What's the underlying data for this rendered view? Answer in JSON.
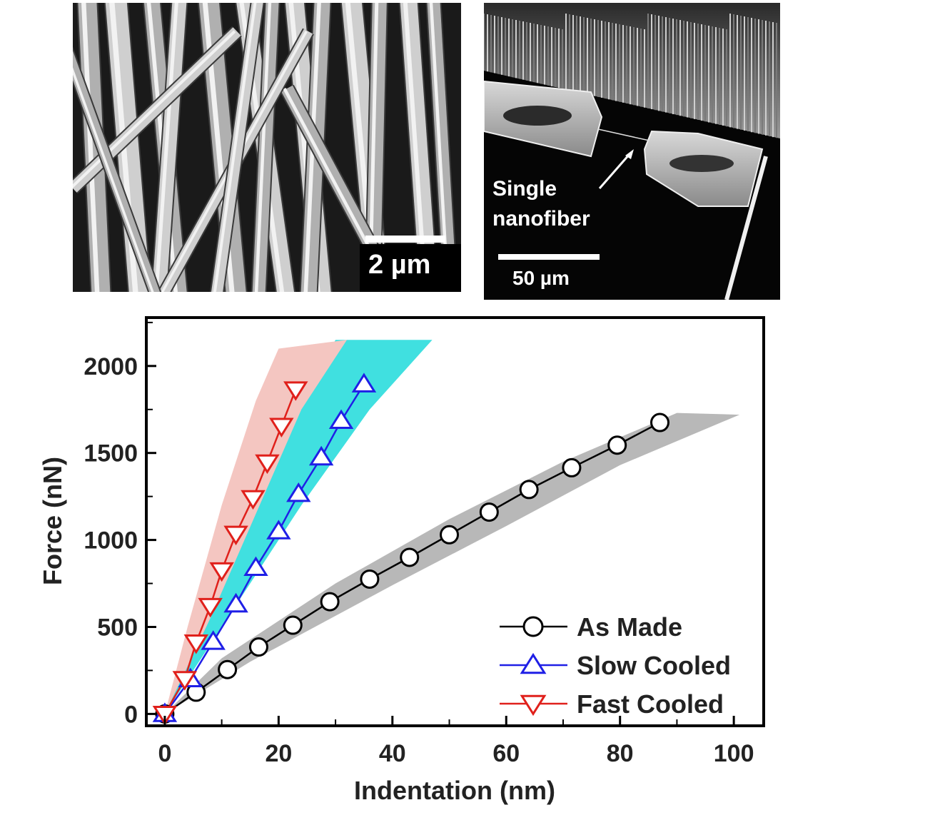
{
  "sem_images": {
    "left": {
      "scale_bar_label": "2 µm"
    },
    "right": {
      "annotation_line1": "Single",
      "annotation_line2": "nanofiber",
      "scale_bar_label": "50 µm"
    }
  },
  "chart_data": {
    "type": "line",
    "xlabel": "Indentation (nm)",
    "ylabel": "Force (nN)",
    "xlim": [
      -3,
      105
    ],
    "ylim": [
      -60,
      2270
    ],
    "xticks": [
      0,
      20,
      40,
      60,
      80,
      100
    ],
    "yticks": [
      0,
      500,
      1000,
      1500,
      2000
    ],
    "legend_position": "bottom-right",
    "series": [
      {
        "name": "As Made",
        "color": "#000000",
        "marker": "circle",
        "band_color": "#b8b8b8",
        "x": [
          0,
          5.5,
          11,
          16.5,
          22.5,
          29,
          36,
          43,
          50,
          57,
          64,
          71.5,
          79.5,
          87
        ],
        "y": [
          0,
          125,
          255,
          385,
          510,
          645,
          775,
          900,
          1030,
          1160,
          1290,
          1415,
          1545,
          1675
        ],
        "band_upper": [
          [
            0,
            0
          ],
          [
            10,
            320
          ],
          [
            30,
            750
          ],
          [
            50,
            1120
          ],
          [
            70,
            1450
          ],
          [
            90,
            1730
          ]
        ],
        "band_lower": [
          [
            0,
            0
          ],
          [
            15,
            300
          ],
          [
            40,
            740
          ],
          [
            60,
            1080
          ],
          [
            80,
            1430
          ],
          [
            101,
            1720
          ]
        ]
      },
      {
        "name": "Slow Cooled",
        "color": "#1f1fe6",
        "marker": "triangle-up",
        "band_color": "#40e0e0",
        "x": [
          0,
          4.5,
          8.5,
          12.5,
          16,
          20,
          23.5,
          27.5,
          31,
          35
        ],
        "y": [
          0,
          200,
          415,
          630,
          840,
          1050,
          1265,
          1475,
          1685,
          1895
        ],
        "band_upper": [
          [
            0,
            0
          ],
          [
            6,
            500
          ],
          [
            14,
            1150
          ],
          [
            22,
            1700
          ],
          [
            30,
            2150
          ]
        ],
        "band_lower": [
          [
            0,
            0
          ],
          [
            12,
            600
          ],
          [
            24,
            1200
          ],
          [
            36,
            1750
          ],
          [
            47,
            2150
          ]
        ]
      },
      {
        "name": "Fast Cooled",
        "color": "#e0201b",
        "marker": "triangle-down",
        "band_color": "#f4c6c1",
        "x": [
          0,
          3.5,
          5.5,
          8,
          10,
          12.5,
          15.5,
          18,
          20.5,
          23
        ],
        "y": [
          0,
          200,
          410,
          620,
          825,
          1035,
          1240,
          1445,
          1655,
          1865
        ],
        "band_upper": [
          [
            0,
            0
          ],
          [
            4,
            500
          ],
          [
            10,
            1200
          ],
          [
            16,
            1800
          ],
          [
            20,
            2100
          ]
        ],
        "band_lower": [
          [
            0,
            0
          ],
          [
            8,
            550
          ],
          [
            16,
            1150
          ],
          [
            24,
            1750
          ],
          [
            32,
            2150
          ]
        ]
      }
    ]
  }
}
